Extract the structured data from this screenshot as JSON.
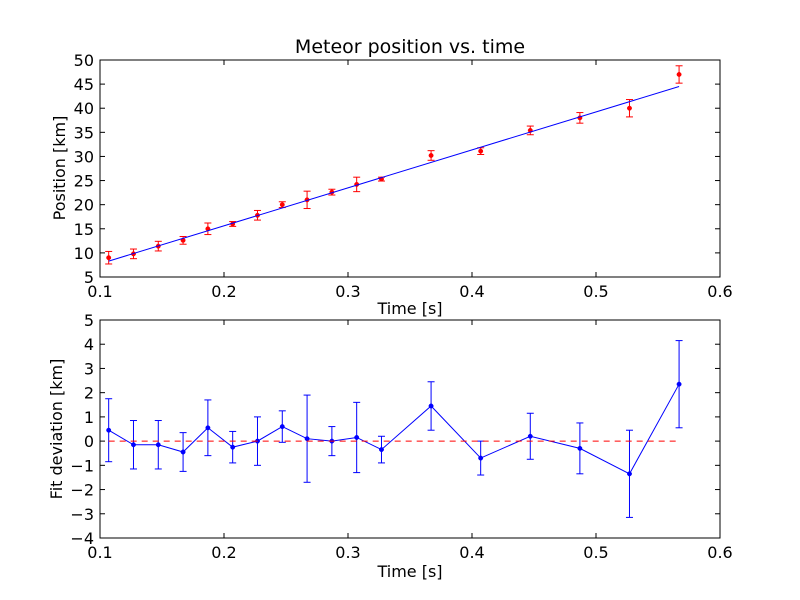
{
  "chart_data": [
    {
      "type": "scatter",
      "title": "Meteor position vs. time",
      "xlabel": "Time [s]",
      "ylabel": "Position [km]",
      "xlim": [
        0.1,
        0.6
      ],
      "ylim": [
        5,
        50
      ],
      "xticks": [
        "0.1",
        "0.2",
        "0.3",
        "0.4",
        "0.5",
        "0.6"
      ],
      "yticks": [
        "5",
        "10",
        "15",
        "20",
        "25",
        "30",
        "35",
        "40",
        "45",
        "50"
      ],
      "grid": false,
      "series": [
        {
          "kind": "points-with-errorbars",
          "color": "#ff0000",
          "points": [
            {
              "x": 0.107,
              "y": 9.0,
              "err": 1.3
            },
            {
              "x": 0.127,
              "y": 9.8,
              "err": 1.0
            },
            {
              "x": 0.147,
              "y": 11.4,
              "err": 1.0
            },
            {
              "x": 0.167,
              "y": 12.6,
              "err": 0.8
            },
            {
              "x": 0.187,
              "y": 15.0,
              "err": 1.2
            },
            {
              "x": 0.207,
              "y": 16.0,
              "err": 0.5
            },
            {
              "x": 0.227,
              "y": 17.8,
              "err": 1.0
            },
            {
              "x": 0.247,
              "y": 20.0,
              "err": 0.6
            },
            {
              "x": 0.267,
              "y": 21.0,
              "err": 1.8
            },
            {
              "x": 0.287,
              "y": 22.6,
              "err": 0.6
            },
            {
              "x": 0.307,
              "y": 24.2,
              "err": 1.5
            },
            {
              "x": 0.327,
              "y": 25.3,
              "err": 0.4
            },
            {
              "x": 0.367,
              "y": 30.2,
              "err": 1.0
            },
            {
              "x": 0.407,
              "y": 31.1,
              "err": 0.7
            },
            {
              "x": 0.447,
              "y": 35.4,
              "err": 0.9
            },
            {
              "x": 0.487,
              "y": 38.0,
              "err": 1.1
            },
            {
              "x": 0.527,
              "y": 40.0,
              "err": 1.8
            },
            {
              "x": 0.567,
              "y": 47.0,
              "err": 1.8
            }
          ]
        },
        {
          "kind": "line",
          "color": "#0000ff",
          "x": [
            0.107,
            0.567
          ],
          "y": [
            8.3,
            44.5
          ]
        }
      ]
    },
    {
      "type": "line",
      "xlabel": "Time [s]",
      "ylabel": "Fit deviation [km]",
      "xlim": [
        0.1,
        0.6
      ],
      "ylim": [
        -4,
        5
      ],
      "xticks": [
        "0.1",
        "0.2",
        "0.3",
        "0.4",
        "0.5",
        "0.6"
      ],
      "yticks": [
        "−4",
        "−3",
        "−2",
        "−1",
        "0",
        "1",
        "2",
        "3",
        "4",
        "5"
      ],
      "grid": false,
      "series": [
        {
          "kind": "line-with-errorbars",
          "color": "#0000ff",
          "points": [
            {
              "x": 0.107,
              "y": 0.45,
              "err": 1.3
            },
            {
              "x": 0.127,
              "y": -0.15,
              "err": 1.0
            },
            {
              "x": 0.147,
              "y": -0.15,
              "err": 1.0
            },
            {
              "x": 0.167,
              "y": -0.45,
              "err": 0.8
            },
            {
              "x": 0.187,
              "y": 0.55,
              "err": 1.15
            },
            {
              "x": 0.207,
              "y": -0.25,
              "err": 0.65
            },
            {
              "x": 0.227,
              "y": 0.0,
              "err": 1.0
            },
            {
              "x": 0.247,
              "y": 0.6,
              "err": 0.65
            },
            {
              "x": 0.267,
              "y": 0.1,
              "err": 1.8
            },
            {
              "x": 0.287,
              "y": 0.0,
              "err": 0.6
            },
            {
              "x": 0.307,
              "y": 0.15,
              "err": 1.45
            },
            {
              "x": 0.327,
              "y": -0.35,
              "err": 0.55
            },
            {
              "x": 0.367,
              "y": 1.45,
              "err": 1.0
            },
            {
              "x": 0.407,
              "y": -0.7,
              "err": 0.7
            },
            {
              "x": 0.447,
              "y": 0.2,
              "err": 0.95
            },
            {
              "x": 0.487,
              "y": -0.3,
              "err": 1.05
            },
            {
              "x": 0.527,
              "y": -1.35,
              "err": 1.8
            },
            {
              "x": 0.567,
              "y": 2.35,
              "err": 1.8
            }
          ]
        },
        {
          "kind": "dashed-line",
          "color": "#ff0000",
          "x": [
            0.107,
            0.567
          ],
          "y": [
            0,
            0
          ]
        }
      ]
    }
  ]
}
